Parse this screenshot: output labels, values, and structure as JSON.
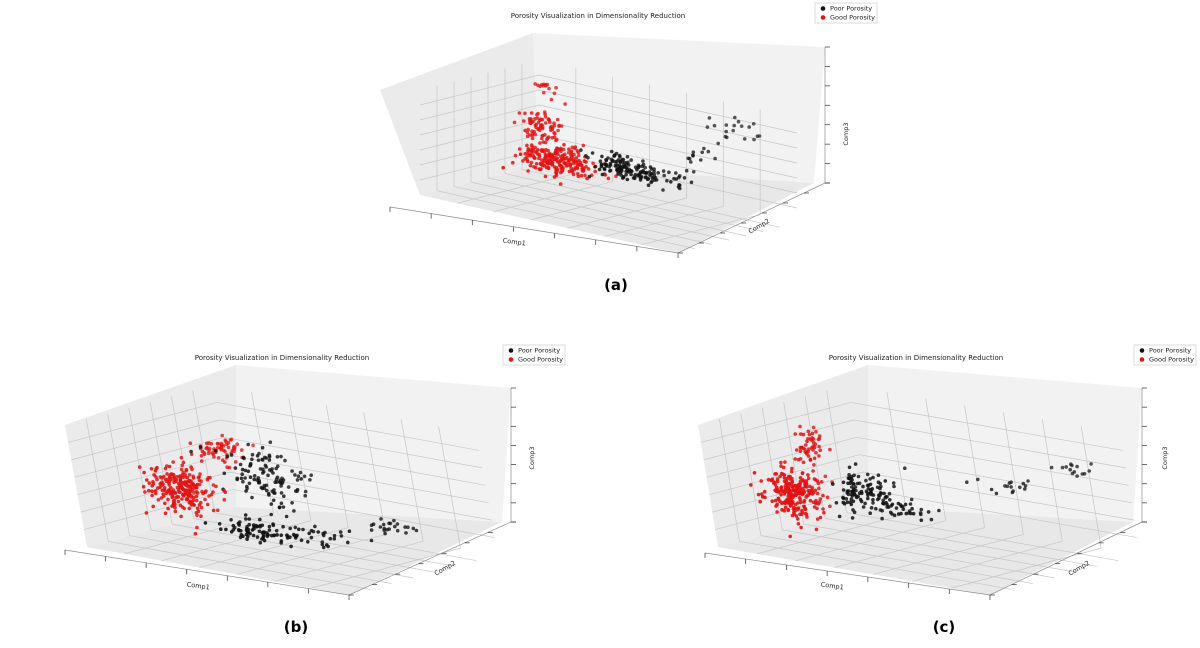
{
  "legend": {
    "poor_label": "Poor Porosity",
    "good_label": "Good Porosity"
  },
  "colors": {
    "poor": "#111111",
    "good": "#e31313"
  },
  "chart_data": [
    {
      "panel": "a",
      "type": "scatter",
      "title": "Porosity Visualization in Dimensionality Reduction",
      "xlabel": "Comp1",
      "ylabel": "Comp2",
      "zlabel": "Comp3",
      "caption": "(a)",
      "legend_position": "top-right",
      "grid": true,
      "series": [
        {
          "name": "Poor Porosity",
          "color": "#111111",
          "clusters": [
            {
              "n": 110,
              "center": [
                0.54,
                0.52,
                0.42
              ],
              "spread": [
                0.06,
                0.06,
                0.05
              ]
            },
            {
              "n": 45,
              "center": [
                0.66,
                0.56,
                0.4
              ],
              "spread": [
                0.07,
                0.07,
                0.04
              ]
            },
            {
              "n": 18,
              "center": [
                0.82,
                0.88,
                0.8
              ],
              "spread": [
                0.06,
                0.04,
                0.05
              ]
            },
            {
              "n": 12,
              "center": [
                0.74,
                0.75,
                0.58
              ],
              "spread": [
                0.05,
                0.04,
                0.05
              ]
            }
          ]
        },
        {
          "name": "Good Porosity",
          "color": "#e31313",
          "clusters": [
            {
              "n": 230,
              "center": [
                0.33,
                0.45,
                0.38
              ],
              "spread": [
                0.07,
                0.07,
                0.06
              ]
            },
            {
              "n": 80,
              "center": [
                0.21,
                0.56,
                0.62
              ],
              "spread": [
                0.04,
                0.05,
                0.08
              ]
            },
            {
              "n": 14,
              "center": [
                0.2,
                0.62,
                0.95
              ],
              "spread": [
                0.02,
                0.02,
                0.06
              ]
            }
          ]
        }
      ]
    },
    {
      "panel": "b",
      "type": "scatter",
      "title": "Porosity Visualization in Dimensionality Reduction",
      "xlabel": "Comp1",
      "ylabel": "Comp2",
      "zlabel": "Comp3",
      "caption": "(b)",
      "legend_position": "top-right",
      "grid": true,
      "series": [
        {
          "name": "Poor Porosity",
          "color": "#111111",
          "clusters": [
            {
              "n": 120,
              "center": [
                0.42,
                0.55,
                0.55
              ],
              "spread": [
                0.08,
                0.06,
                0.12
              ]
            },
            {
              "n": 70,
              "center": [
                0.45,
                0.35,
                0.2
              ],
              "spread": [
                0.07,
                0.05,
                0.05
              ]
            },
            {
              "n": 40,
              "center": [
                0.66,
                0.38,
                0.22
              ],
              "spread": [
                0.08,
                0.05,
                0.04
              ]
            },
            {
              "n": 22,
              "center": [
                0.86,
                0.6,
                0.3
              ],
              "spread": [
                0.04,
                0.04,
                0.03
              ]
            }
          ]
        },
        {
          "name": "Good Porosity",
          "color": "#e31313",
          "clusters": [
            {
              "n": 240,
              "center": [
                0.17,
                0.38,
                0.42
              ],
              "spread": [
                0.05,
                0.06,
                0.1
              ]
            },
            {
              "n": 60,
              "center": [
                0.24,
                0.58,
                0.7
              ],
              "spread": [
                0.03,
                0.05,
                0.05
              ]
            }
          ]
        }
      ]
    },
    {
      "panel": "c",
      "type": "scatter",
      "title": "Porosity Visualization in Dimensionality Reduction",
      "xlabel": "Comp1",
      "ylabel": "Comp2",
      "zlabel": "Comp3",
      "caption": "(c)",
      "legend_position": "top-right",
      "grid": true,
      "series": [
        {
          "name": "Poor Porosity",
          "color": "#111111",
          "clusters": [
            {
              "n": 110,
              "center": [
                0.32,
                0.45,
                0.42
              ],
              "spread": [
                0.05,
                0.05,
                0.09
              ]
            },
            {
              "n": 40,
              "center": [
                0.46,
                0.42,
                0.36
              ],
              "spread": [
                0.06,
                0.05,
                0.04
              ]
            },
            {
              "n": 16,
              "center": [
                0.74,
                0.66,
                0.58
              ],
              "spread": [
                0.05,
                0.04,
                0.03
              ]
            },
            {
              "n": 14,
              "center": [
                0.92,
                0.8,
                0.75
              ],
              "spread": [
                0.04,
                0.03,
                0.03
              ]
            }
          ]
        },
        {
          "name": "Good Porosity",
          "color": "#e31313",
          "clusters": [
            {
              "n": 250,
              "center": [
                0.14,
                0.3,
                0.4
              ],
              "spread": [
                0.035,
                0.07,
                0.1
              ]
            },
            {
              "n": 50,
              "center": [
                0.14,
                0.45,
                0.72
              ],
              "spread": [
                0.02,
                0.04,
                0.07
              ]
            }
          ]
        }
      ]
    }
  ]
}
